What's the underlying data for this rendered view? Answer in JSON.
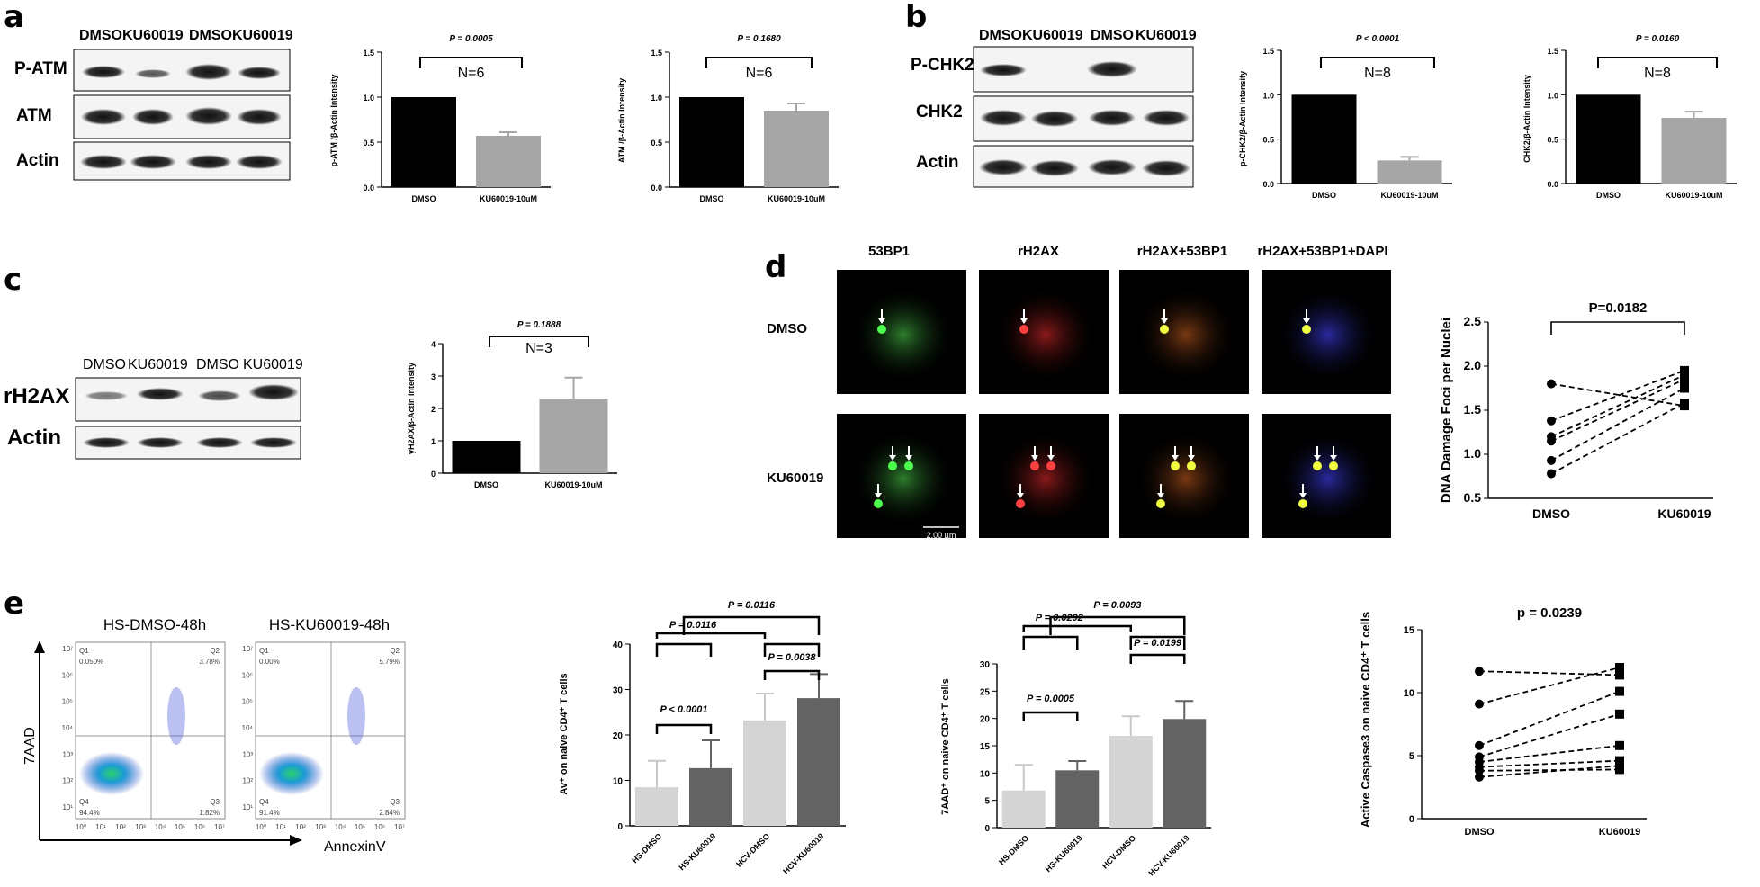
{
  "panels": {
    "a": "a",
    "b": "b",
    "c": "c",
    "d": "d",
    "e": "e"
  },
  "blots": {
    "a": {
      "lanes": [
        "DMSO",
        "KU60019",
        "DMSO",
        "KU60019"
      ],
      "rows": [
        "P-ATM",
        "ATM",
        "Actin"
      ]
    },
    "b": {
      "lanes": [
        "DMSO",
        "KU60019",
        "DMSO",
        "KU60019"
      ],
      "rows": [
        "P-CHK2",
        "CHK2",
        "Actin"
      ]
    },
    "c": {
      "lanes": [
        "DMSO",
        "KU60019",
        "DMSO",
        "KU60019"
      ],
      "rows": [
        "rH2AX",
        "Actin"
      ]
    }
  },
  "microscopy": {
    "columns": [
      "53BP1",
      "rH2AX",
      "rH2AX+53BP1",
      "rH2AX+53BP1+DAPI"
    ],
    "rows": [
      "DMSO",
      "KU60019"
    ],
    "scale_bar": "2.00 µm"
  },
  "flow": {
    "titles": [
      "HS-DMSO-48h",
      "HS-KU60019-48h"
    ],
    "xlabel": "AnnexinV",
    "ylabel": "7AAD",
    "quadrants": [
      {
        "q1": "0.050%",
        "q2": "3.78%",
        "q3": "1.82%",
        "q4": "94.4%"
      },
      {
        "q1": "0.00%",
        "q2": "5.79%",
        "q3": "2.84%",
        "q4": "91.4%"
      }
    ],
    "quad_names": [
      "Q1",
      "Q2",
      "Q3",
      "Q4"
    ],
    "xticks": [
      "10⁰",
      "10¹",
      "10²",
      "10³",
      "10⁴",
      "10⁵",
      "10⁶",
      "10⁷"
    ],
    "yticks": [
      "10¹",
      "10²",
      "10³",
      "10⁴",
      "10⁵",
      "10⁶",
      "10⁷"
    ]
  },
  "chart_data": [
    {
      "id": "pATM",
      "type": "bar",
      "categories": [
        "DMSO",
        "KU60019-10uM"
      ],
      "values": [
        1.0,
        0.57
      ],
      "errors": [
        0,
        0.04
      ],
      "ylabel": "p-ATM /β-Actin Intensity",
      "ylim": [
        0,
        1.5
      ],
      "yticks": [
        "0.0",
        "0.5",
        "1.0",
        "1.5"
      ],
      "annotations": [
        {
          "text": "P = 0.0005"
        },
        {
          "text": "N=6"
        }
      ],
      "colors": [
        "#000000",
        "#a6a6a6"
      ]
    },
    {
      "id": "ATM",
      "type": "bar",
      "categories": [
        "DMSO",
        "KU60019-10uM"
      ],
      "values": [
        1.0,
        0.85
      ],
      "errors": [
        0,
        0.08
      ],
      "ylabel": "ATM /β-Actin Intensity",
      "ylim": [
        0,
        1.5
      ],
      "yticks": [
        "0.0",
        "0.5",
        "1.0",
        "1.5"
      ],
      "annotations": [
        {
          "text": "P = 0.1680"
        },
        {
          "text": "N=6"
        }
      ],
      "colors": [
        "#000000",
        "#a6a6a6"
      ]
    },
    {
      "id": "pCHK2",
      "type": "bar",
      "categories": [
        "DMSO",
        "KU60019-10uM"
      ],
      "values": [
        1.0,
        0.26
      ],
      "errors": [
        0,
        0.04
      ],
      "ylabel": "p-CHK2/β-Actin Intensity",
      "ylim": [
        0,
        1.5
      ],
      "yticks": [
        "0.0",
        "0.5",
        "1.0",
        "1.5"
      ],
      "annotations": [
        {
          "text": "P < 0.0001"
        },
        {
          "text": "N=8"
        }
      ],
      "colors": [
        "#000000",
        "#a6a6a6"
      ]
    },
    {
      "id": "CHK2",
      "type": "bar",
      "categories": [
        "DMSO",
        "KU60019-10uM"
      ],
      "values": [
        1.0,
        0.74
      ],
      "errors": [
        0,
        0.07
      ],
      "ylabel": "CHK2/β-Actin Intensity",
      "ylim": [
        0,
        1.5
      ],
      "yticks": [
        "0.0",
        "0.5",
        "1.0",
        "1.5"
      ],
      "annotations": [
        {
          "text": "P = 0.0160"
        },
        {
          "text": "N=8"
        }
      ],
      "colors": [
        "#000000",
        "#a6a6a6"
      ]
    },
    {
      "id": "rH2AX",
      "type": "bar",
      "categories": [
        "DMSO",
        "KU60019-10uM"
      ],
      "values": [
        1.0,
        2.3
      ],
      "errors": [
        0,
        0.65
      ],
      "ylabel": "γH2AX/β-Actin Intensity",
      "ylim": [
        0,
        4
      ],
      "yticks": [
        "0",
        "1",
        "2",
        "3",
        "4"
      ],
      "annotations": [
        {
          "text": "P = 0.1888"
        },
        {
          "text": "N=3"
        }
      ],
      "colors": [
        "#000000",
        "#a6a6a6"
      ]
    },
    {
      "id": "foci",
      "type": "scatter",
      "categories": [
        "DMSO",
        "KU60019"
      ],
      "pairs": [
        [
          1.8,
          1.55
        ],
        [
          1.38,
          1.95
        ],
        [
          1.2,
          1.9
        ],
        [
          1.15,
          1.85
        ],
        [
          0.93,
          1.75
        ],
        [
          0.78,
          1.58
        ]
      ],
      "ylabel": "DNA Damage Foci per Nuclei",
      "ylim": [
        0.5,
        2.5
      ],
      "yticks": [
        "0.5",
        "1.0",
        "1.5",
        "2.0",
        "2.5"
      ],
      "annotations": [
        {
          "text": "P=0.0182"
        }
      ]
    },
    {
      "id": "Av",
      "type": "bar",
      "categories": [
        "HS-DMSO",
        "HS-KU60019",
        "HCV-DMSO",
        "HCV-KU60019"
      ],
      "values": [
        8.5,
        12.7,
        23.2,
        28.1
      ],
      "errors": [
        5.8,
        6.1,
        5.9,
        5.3
      ],
      "ylabel": "Av⁺ on naive CD4⁺ T cells",
      "ylim": [
        0,
        40
      ],
      "yticks": [
        "0",
        "10",
        "20",
        "30",
        "40"
      ],
      "annotations": [
        {
          "text": "P = 0.0116"
        },
        {
          "text": "P = 0.0116"
        },
        {
          "text": "P = 0.0038"
        },
        {
          "text": "P < 0.0001"
        }
      ],
      "colors": [
        "#d4d4d4",
        "#636363",
        "#d4d4d4",
        "#636363"
      ]
    },
    {
      "id": "7AAD",
      "type": "bar",
      "categories": [
        "HS-DMSO",
        "HS-KU60019",
        "HCV-DMSO",
        "HCV-KU60019"
      ],
      "values": [
        6.8,
        10.5,
        16.8,
        19.9
      ],
      "errors": [
        4.7,
        1.7,
        3.6,
        3.3
      ],
      "ylabel": "7AAD⁺ on naive CD4⁺ T cells",
      "ylim": [
        0,
        30
      ],
      "yticks": [
        "0",
        "5",
        "10",
        "15",
        "20",
        "25",
        "30"
      ],
      "annotations": [
        {
          "text": "P = 0.0292"
        },
        {
          "text": "P = 0.0093"
        },
        {
          "text": "P = 0.0199"
        },
        {
          "text": "P = 0.0005"
        }
      ],
      "colors": [
        "#d4d4d4",
        "#636363",
        "#d4d4d4",
        "#636363"
      ]
    },
    {
      "id": "casp3",
      "type": "scatter",
      "categories": [
        "DMSO",
        "KU60019"
      ],
      "pairs": [
        [
          11.7,
          11.4
        ],
        [
          9.1,
          12.0
        ],
        [
          5.8,
          10.1
        ],
        [
          4.9,
          8.3
        ],
        [
          4.5,
          5.8
        ],
        [
          4.1,
          4.6
        ],
        [
          3.8,
          3.9
        ],
        [
          3.3,
          4.2
        ]
      ],
      "ylabel": "Active Caspase3 on naive CD4⁺ T cells",
      "ylim": [
        0,
        15
      ],
      "yticks": [
        "0",
        "5",
        "10",
        "15"
      ],
      "annotations": [
        {
          "text": "p = 0.0239"
        }
      ]
    }
  ]
}
